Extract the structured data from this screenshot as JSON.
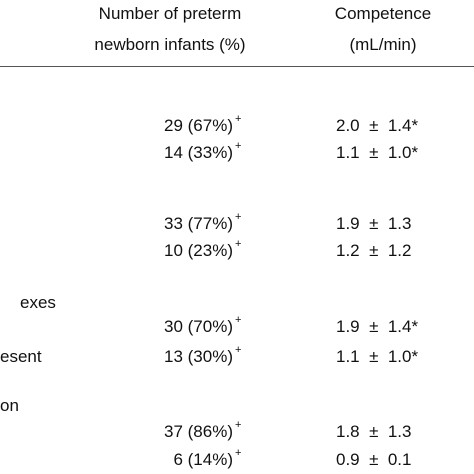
{
  "table": {
    "header": {
      "count": [
        "Number of preterm",
        "newborn infants (%)"
      ],
      "competence": [
        "Competence",
        "(mL/min)"
      ]
    },
    "rows": [
      {
        "count": "29 (67%)",
        "sup": "+",
        "competence": "2.0  ±  1.4*"
      },
      {
        "count": "14 (33%)",
        "sup": "+",
        "competence": "1.1  ±  1.0*"
      },
      {
        "count": "33 (77%)",
        "sup": "+",
        "competence": "1.9  ±  1.3"
      },
      {
        "count": "10 (23%)",
        "sup": "+",
        "competence": "1.2  ±  1.2"
      },
      {
        "label": "exes"
      },
      {
        "count": "30 (70%)",
        "sup": "+",
        "competence": "1.9  ±  1.4*"
      },
      {
        "label": "esent",
        "count": "13 (30%)",
        "sup": "+",
        "competence": "1.1  ±  1.0*"
      },
      {
        "label": "on"
      },
      {
        "count": "37 (86%)",
        "sup": "+",
        "competence": "1.8  ±  1.3"
      },
      {
        "count": "6 (14%)",
        "sup": "+",
        "competence": "0.9  ±  0.1"
      }
    ]
  }
}
